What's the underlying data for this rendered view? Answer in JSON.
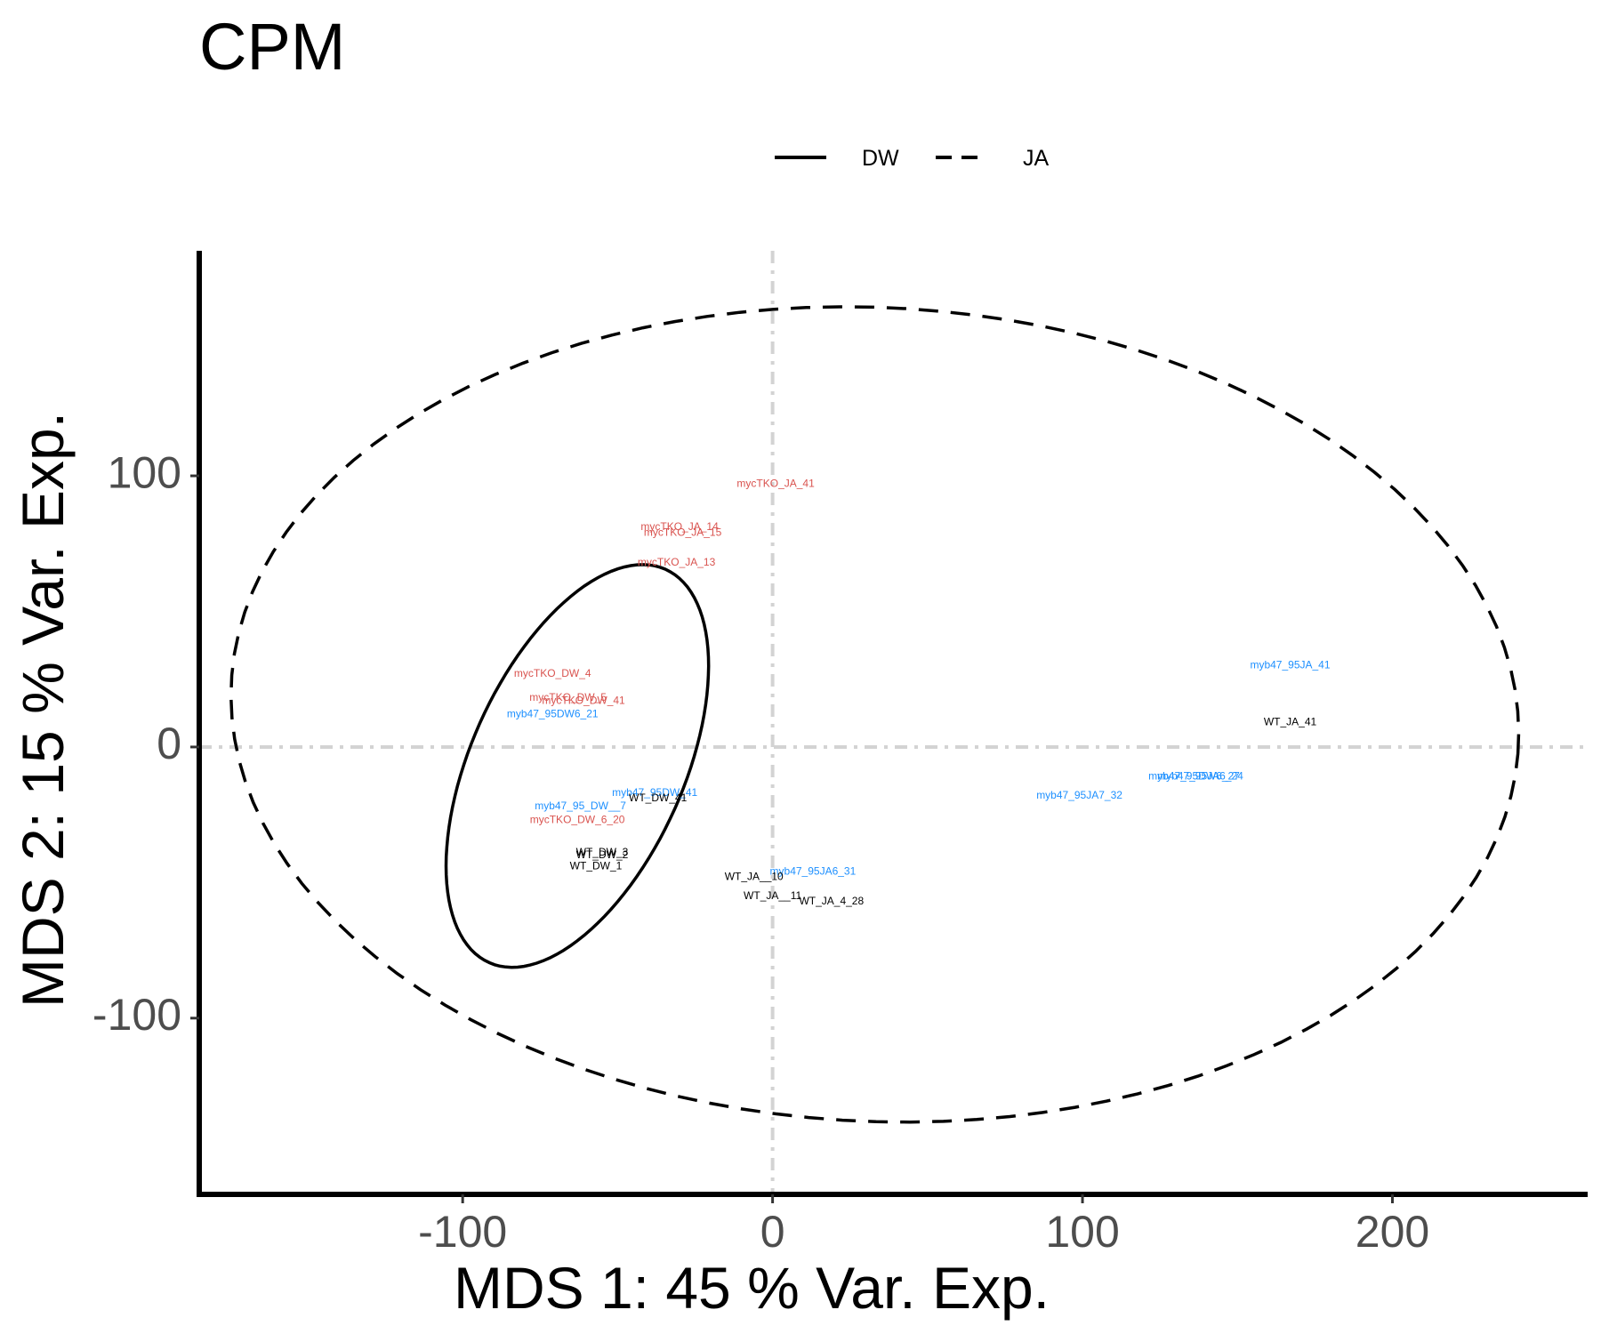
{
  "chart_data": {
    "type": "scatter",
    "title": "CPM",
    "xlabel": "MDS 1: 45 % Var. Exp.",
    "ylabel": "MDS 2: 15 % Var. Exp.",
    "xlim": [
      -185,
      263
    ],
    "ylim": [
      -165,
      183
    ],
    "x_ticks": [
      -100,
      0,
      100,
      200
    ],
    "y_ticks": [
      -100,
      0,
      100
    ],
    "x_tick_labels": [
      "-100",
      "0",
      "100",
      "200"
    ],
    "y_tick_labels": [
      "-100",
      "0",
      "100"
    ],
    "reference_lines": {
      "x": 0,
      "y": 0,
      "color": "#d3d3d3",
      "style": "dot-dash"
    },
    "grid": false,
    "legend": {
      "placement": "top",
      "entries": [
        {
          "label": "DW",
          "linetype": "solid"
        },
        {
          "label": "JA",
          "linetype": "dashed"
        }
      ]
    },
    "colors": {
      "WT": "#000000",
      "mycTKO": "#d9534f",
      "myb47": "#1e90ff"
    },
    "points": [
      {
        "label": "mycTKO_JA_41",
        "group": "mycTKO",
        "x": 1,
        "y": 97
      },
      {
        "label": "mycTKO_JA_14",
        "group": "mycTKO",
        "x": -30,
        "y": 81
      },
      {
        "label": "mycTKO_JA_15",
        "group": "mycTKO",
        "x": -29,
        "y": 79
      },
      {
        "label": "mycTKO_JA_13",
        "group": "mycTKO",
        "x": -31,
        "y": 68
      },
      {
        "label": "mycTKO_DW_4",
        "group": "mycTKO",
        "x": -71,
        "y": 27
      },
      {
        "label": "mycTKO_DW_5",
        "group": "mycTKO",
        "x": -66,
        "y": 18
      },
      {
        "label": "mycTKO_DW_41",
        "group": "mycTKO",
        "x": -61,
        "y": 17
      },
      {
        "label": "myb47_95DW6_21",
        "group": "myb47",
        "x": -71,
        "y": 12
      },
      {
        "label": "myb47_95DW_41",
        "group": "myb47",
        "x": -38,
        "y": -17
      },
      {
        "label": "WT_DW_41",
        "group": "WT",
        "x": -37,
        "y": -19
      },
      {
        "label": "myb47_95_DW__7",
        "group": "myb47",
        "x": -62,
        "y": -22
      },
      {
        "label": "mycTKO_DW_6_20",
        "group": "mycTKO",
        "x": -63,
        "y": -27
      },
      {
        "label": "WT_DW_3",
        "group": "WT",
        "x": -55,
        "y": -39
      },
      {
        "label": "WT_DW_2",
        "group": "WT",
        "x": -55,
        "y": -40
      },
      {
        "label": "WT_DW_1",
        "group": "WT",
        "x": -57,
        "y": -44
      },
      {
        "label": "myb47_95JA6_31",
        "group": "myb47",
        "x": 13,
        "y": -46
      },
      {
        "label": "WT_JA__10",
        "group": "WT",
        "x": -6,
        "y": -48
      },
      {
        "label": "WT_JA__11",
        "group": "WT",
        "x": 0,
        "y": -55
      },
      {
        "label": "WT_JA_4_28",
        "group": "WT",
        "x": 19,
        "y": -57
      },
      {
        "label": "myb47_95JA_41",
        "group": "myb47",
        "x": 167,
        "y": 30
      },
      {
        "label": "WT_JA_41",
        "group": "WT",
        "x": 167,
        "y": 9
      },
      {
        "label": "myb47_95DW6_27",
        "group": "myb47",
        "x": 136,
        "y": -11
      },
      {
        "label": "myb47_95JA6_24",
        "group": "myb47",
        "x": 138,
        "y": -11
      },
      {
        "label": "myb47_95JA7_32",
        "group": "myb47",
        "x": 99,
        "y": -18
      }
    ],
    "ellipses": [
      {
        "group": "DW",
        "linetype": "solid",
        "cx": -63,
        "cy": -7,
        "rx": 78,
        "ry": 35,
        "angle_deg": 70
      },
      {
        "group": "JA",
        "linetype": "dashed",
        "cx": 33,
        "cy": 12,
        "rx": 208,
        "ry": 150,
        "angle_deg": -4
      }
    ]
  }
}
